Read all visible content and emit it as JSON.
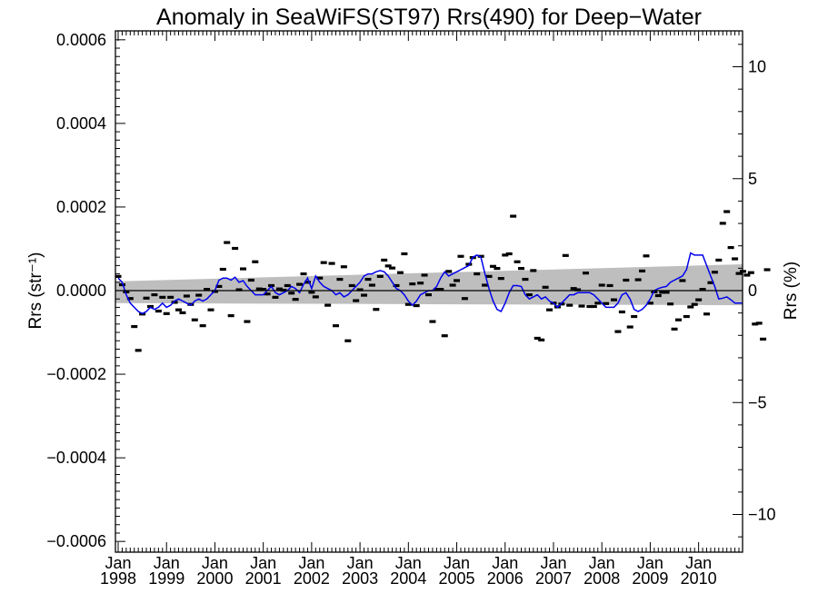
{
  "chart_data": {
    "type": "scatter",
    "title": "Anomaly in SeaWiFS(ST97) Rrs(490) for Deep−Water",
    "ylabel": "Rrs (str⁻¹)",
    "y2label": "Rrs (%)",
    "xlabel": "",
    "xlim": [
      "1998-01",
      "2010-12"
    ],
    "ylim": [
      -0.00066,
      0.00066
    ],
    "y2lim": [
      -11.5,
      11.5
    ],
    "x_ticks": [
      {
        "top": "Jan",
        "bottom": "1998",
        "t": 0
      },
      {
        "top": "Jan",
        "bottom": "1999",
        "t": 12
      },
      {
        "top": "Jan",
        "bottom": "2000",
        "t": 24
      },
      {
        "top": "Jan",
        "bottom": "2001",
        "t": 36
      },
      {
        "top": "Jan",
        "bottom": "2002",
        "t": 48
      },
      {
        "top": "Jan",
        "bottom": "2003",
        "t": 60
      },
      {
        "top": "Jan",
        "bottom": "2004",
        "t": 72
      },
      {
        "top": "Jan",
        "bottom": "2005",
        "t": 84
      },
      {
        "top": "Jan",
        "bottom": "2006",
        "t": 96
      },
      {
        "top": "Jan",
        "bottom": "2007",
        "t": 108
      },
      {
        "top": "Jan",
        "bottom": "2008",
        "t": 120
      },
      {
        "top": "Jan",
        "bottom": "2009",
        "t": 132
      },
      {
        "top": "Jan",
        "bottom": "2010",
        "t": 144
      }
    ],
    "y_ticks": [
      {
        "v": 0.0006,
        "label": "0.0006"
      },
      {
        "v": 0.0004,
        "label": "0.0004"
      },
      {
        "v": 0.0002,
        "label": "0.0002"
      },
      {
        "v": 0.0,
        "label": "0.0000"
      },
      {
        "v": -0.0002,
        "label": "−0.0002"
      },
      {
        "v": -0.0004,
        "label": "−0.0004"
      },
      {
        "v": -0.0006,
        "label": "−0.0006"
      }
    ],
    "y2_ticks": [
      {
        "v": 10,
        "label": "10"
      },
      {
        "v": 5,
        "label": "5"
      },
      {
        "v": 0,
        "label": "0"
      },
      {
        "v": -5,
        "label": "−5"
      },
      {
        "v": -10,
        "label": "−10"
      }
    ],
    "monthly_anomaly": {
      "name": "",
      "color": "#000000",
      "values": [
        3.4e-05,
        1.4e-05,
        -3e-06,
        -1.9e-05,
        -8.6e-05,
        -0.000143,
        -5.6e-05,
        -1.8e-05,
        -3.8e-05,
        -1e-05,
        -4.9e-05,
        -1.6e-05,
        -5.5e-05,
        -1.6e-05,
        -2.8e-05,
        -4.6e-05,
        -5.3e-05,
        -1.3e-05,
        -3.3e-05,
        -7e-05,
        -1.1e-05,
        -8.4e-05,
        3e-06,
        -4.6e-05,
        -2e-06,
        1e-05,
        5.1e-05,
        0.000115,
        -6e-05,
        0.000101,
        2e-06,
        5.2e-05,
        -7.4e-05,
        2.5e-05,
        6.9e-05,
        4e-06,
        3e-06,
        -8e-06,
        1.2e-05,
        -1.6e-05,
        4e-06,
        1e-06,
        1.2e-05,
        -6e-06,
        -2.1e-05,
        1.5e-05,
        4e-05,
        2e-05,
        -4e-06,
        -1.5e-05,
        3e-05,
        6.7e-05,
        -3.5e-05,
        6.5e-05,
        -8.4e-05,
        2.7e-05,
        5.7e-05,
        -0.00012,
        1.2e-05,
        -2.4e-05,
        2e-06,
        -1.1e-05,
        2.7e-05,
        1.3e-05,
        -4.5e-05,
        3.4e-05,
        7.3e-05,
        5.9e-05,
        5.4e-05,
        1.2e-05,
        4.3e-05,
        8.8e-05,
        -3.3e-05,
        1.6e-05,
        -3.6e-05,
        1.8e-05,
        3.7e-05,
        -1e-05,
        -7.4e-05,
        3e-06,
        3e-06,
        -0.000108,
        4.6e-05,
        1.3e-05,
        2.4e-05,
        8.2e-05,
        -1.9e-05,
        6.3e-05,
        7.9e-05,
        4e-05,
        8.2e-05,
        1.3e-05,
        3.4e-05,
        5.8e-05,
        5.3e-05,
        2.9e-05,
        8.5e-05,
        8.8e-05,
        0.000178,
        6.9e-05,
        5.3e-05,
        2.7e-05,
        -1e-05,
        4.8e-05,
        -0.000114,
        -0.000118,
        8e-06,
        -4.6e-05,
        -3e-05,
        -3.9e-05,
        -3.2e-05,
        8.4e-05,
        -3.5e-05,
        5e-06,
        2e-06,
        -3.7e-05,
        4.2e-05,
        -3.8e-05,
        -3.8e-05,
        -3e-05,
        1.3e-05,
        -3.1e-05,
        1.2e-05,
        -2.2e-05,
        -9.8e-05,
        -5.1e-05,
        2.5e-05,
        -8.7e-05,
        -6.2e-05,
        2.6e-05,
        4.7e-05,
        8.3e-05,
        -3e-05,
        -3e-06,
        -1.2e-05,
        -4e-06,
        -4e-06,
        -3.2e-05,
        -9.2e-05,
        -7e-05,
        2.4e-05,
        -6.2e-05,
        -3.9e-05,
        -3.3e-05,
        -2.2e-05,
        3e-06,
        -5.6e-05,
        1.9e-05,
        4.4e-05,
        7.3e-05,
        0.000161,
        0.000189,
        0.000103,
        7.6e-05,
        4.1e-05,
        4.6e-05,
        3.7e-05,
        4.3e-05,
        -8e-05,
        -7.8e-05,
        -0.000116,
        5e-05
      ]
    },
    "running_mean": {
      "name": "",
      "color": "#0000ee",
      "values": [
        3e-05,
        2e-05,
        -1e-05,
        -3e-05,
        -4e-05,
        -5e-05,
        -5.5e-05,
        -5e-05,
        -4e-05,
        -4.5e-05,
        -4e-05,
        -3e-05,
        -4e-05,
        -3.5e-05,
        -2.5e-05,
        -2e-05,
        -2.5e-05,
        -3e-05,
        -3.5e-05,
        -2.5e-05,
        -2e-05,
        -2.5e-05,
        -2e-05,
        -1e-05,
        0.0,
        2.5e-05,
        3e-05,
        3e-05,
        2.5e-05,
        3.2e-05,
        2e-05,
        2.4e-05,
        1e-05,
        0.0,
        -1e-05,
        -1e-05,
        -1e-05,
        0.0,
        1e-05,
        -5e-06,
        -1e-05,
        -5e-06,
        0.0,
        1e-05,
        5e-06,
        -5e-06,
        1.5e-05,
        3e-05,
        5e-06,
        3.5e-05,
        2e-05,
        1e-05,
        5e-06,
        0.0,
        -1e-05,
        -5e-06,
        -1.5e-05,
        -1e-05,
        0.0,
        1e-05,
        2e-05,
        3.5e-05,
        4e-05,
        4e-05,
        4.5e-05,
        4.8e-05,
        4.5e-05,
        3.5e-05,
        2e-05,
        5e-06,
        0.0,
        -1e-05,
        -2.5e-05,
        -3.5e-05,
        -2.5e-05,
        -1e-05,
        -5e-06,
        0.0,
        0.0,
        1e-05,
        3e-05,
        4.5e-05,
        3.5e-05,
        4e-05,
        4.5e-05,
        5e-05,
        5.5e-05,
        6e-05,
        8e-05,
        8.5e-05,
        8e-05,
        4e-05,
        5e-06,
        -2.5e-05,
        -4.5e-05,
        -5e-05,
        -3e-05,
        -5e-06,
        1.2e-05,
        1.2e-05,
        1e-05,
        -1e-05,
        -2e-05,
        -1.5e-05,
        -1e-05,
        -2e-05,
        -1.5e-05,
        -2.5e-05,
        -3e-05,
        -4e-05,
        -3e-05,
        -2e-05,
        -1e-05,
        -1e-05,
        -5e-06,
        -5e-06,
        -5e-06,
        -5e-06,
        -1e-05,
        -2e-05,
        -3e-05,
        -4e-05,
        -4e-05,
        -4e-05,
        -3e-05,
        -1e-05,
        -5e-06,
        -2e-05,
        -4.5e-05,
        -5e-05,
        -4.5e-05,
        -3.5e-05,
        -2e-05,
        0.0,
        5e-06,
        8e-06,
        1e-05,
        2e-05,
        2.5e-05,
        3e-05,
        3.5e-05,
        5e-05,
        9e-05,
        8.5e-05,
        8.5e-05,
        8.5e-05,
        6e-05,
        3.5e-05,
        1e-05,
        -2e-05,
        -1.8e-05,
        -1.5e-05,
        -2.2e-05,
        -3e-05,
        -3e-05,
        -3e-05
      ]
    },
    "trend_band": {
      "color": "#bebebe",
      "t": [
        0,
        155
      ],
      "lower": [
        -3e-05,
        -3.5e-05
      ],
      "upper": [
        2.2e-05,
        6.3e-05
      ]
    },
    "zero_line": 0.0,
    "grid": false,
    "legend": "none"
  }
}
